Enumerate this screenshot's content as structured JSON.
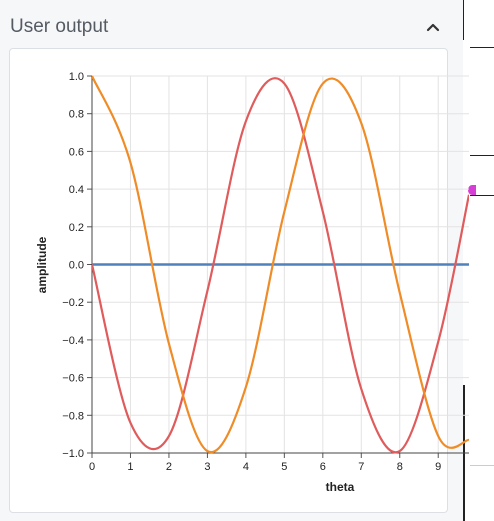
{
  "header": {
    "title": "User output",
    "collapse_icon": "chevron-up-icon"
  },
  "chart_data": {
    "type": "line",
    "xlabel": "theta",
    "ylabel": "amplitude",
    "xlim": [
      0,
      9.8
    ],
    "ylim": [
      -1.0,
      1.0
    ],
    "grid": true,
    "x_ticks": [
      "0",
      "1",
      "2",
      "3",
      "4",
      "5",
      "6",
      "7",
      "8",
      "9"
    ],
    "y_ticks": [
      "1.0",
      "0.8",
      "0.6",
      "0.4",
      "0.2",
      "0.0",
      "−0.2",
      "−0.4",
      "−0.6",
      "−0.8",
      "−1.0"
    ],
    "series": [
      {
        "function": "cos(theta)",
        "color": "#ef8c27",
        "x": [
          0,
          1,
          2,
          3,
          4,
          5,
          6,
          7,
          8,
          9,
          9.8
        ],
        "values": [
          1.0,
          0.54,
          -0.42,
          -0.99,
          -0.65,
          0.28,
          0.96,
          0.75,
          -0.15,
          -0.91,
          -0.93
        ]
      },
      {
        "function": "-sin(theta)",
        "color": "#e05c5c",
        "x": [
          0,
          1,
          2,
          3,
          4,
          5,
          6,
          7,
          8,
          9,
          9.8
        ],
        "values": [
          0.0,
          -0.84,
          -0.91,
          -0.14,
          0.76,
          0.96,
          0.28,
          -0.66,
          -0.99,
          -0.41,
          0.37
        ]
      },
      {
        "function": "0",
        "color": "#4f81bd",
        "x": [
          0,
          9.8
        ],
        "values": [
          0,
          0
        ]
      }
    ]
  }
}
